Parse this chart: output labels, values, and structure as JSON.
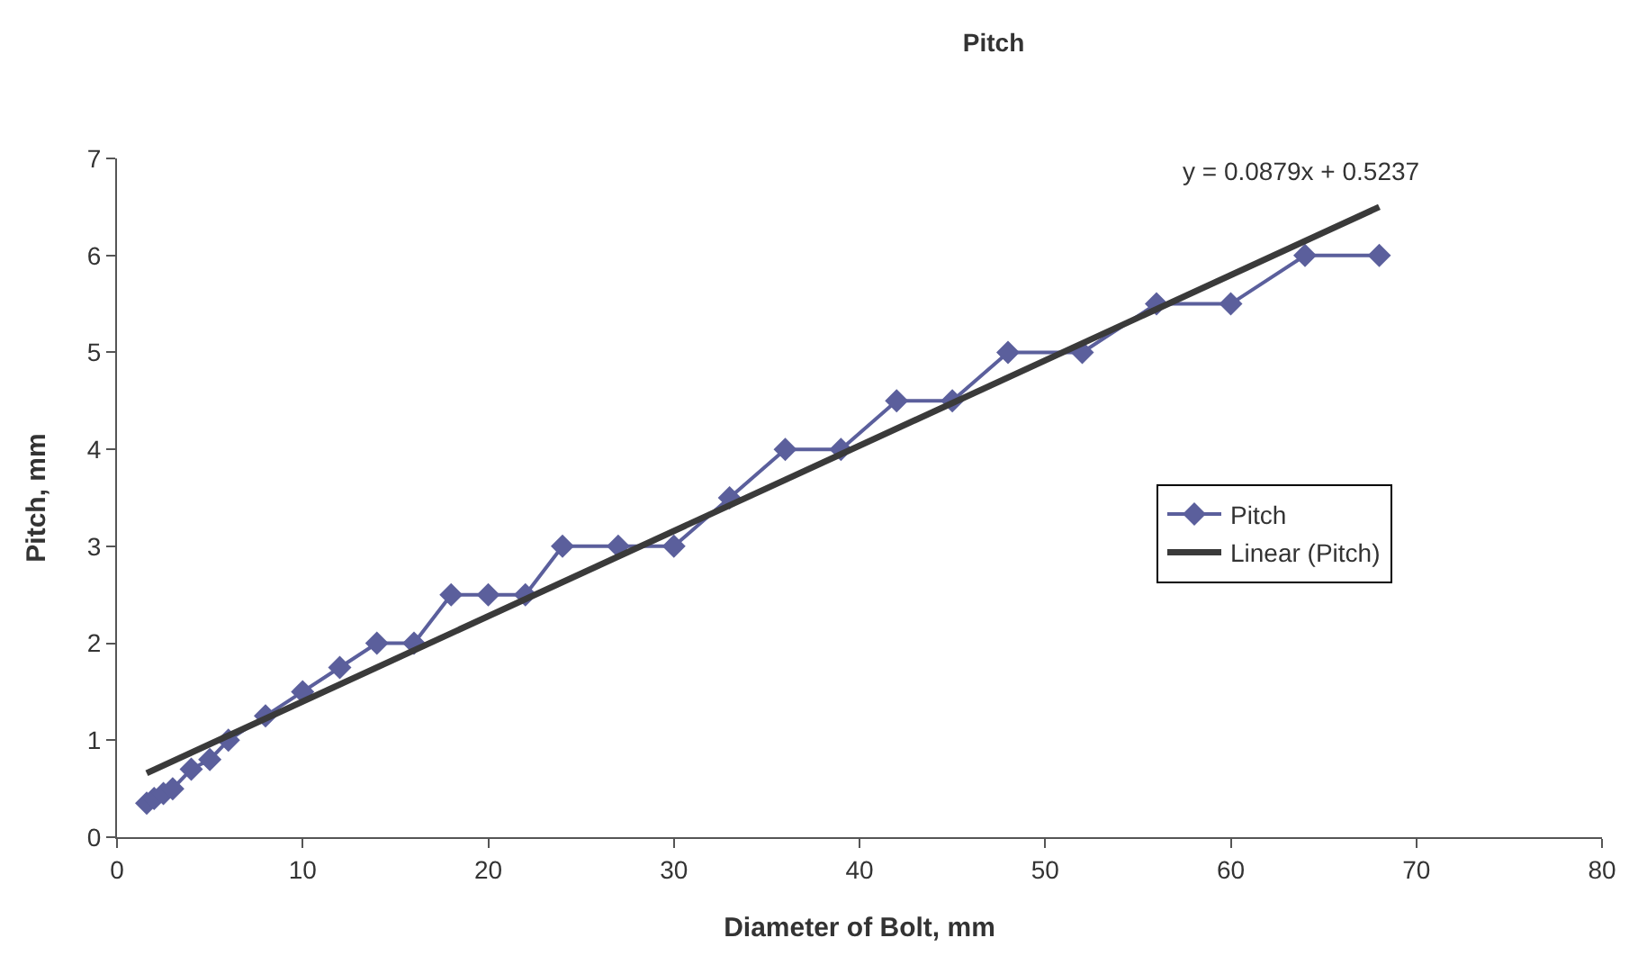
{
  "chart_data": {
    "type": "line",
    "title": "Pitch",
    "xlabel": "Diameter of Bolt, mm",
    "ylabel": "Pitch, mm",
    "x": [
      1.6,
      2,
      2.5,
      3,
      4,
      5,
      6,
      8,
      10,
      12,
      14,
      16,
      18,
      20,
      22,
      24,
      27,
      30,
      33,
      36,
      39,
      42,
      45,
      48,
      52,
      56,
      60,
      64,
      68
    ],
    "series": [
      {
        "name": "Pitch",
        "color": "#5b5f9c",
        "values": [
          0.35,
          0.4,
          0.45,
          0.5,
          0.7,
          0.8,
          1,
          1.25,
          1.5,
          1.75,
          2,
          2,
          2.5,
          2.5,
          2.5,
          3,
          3,
          3,
          3.5,
          4,
          4,
          4.5,
          4.5,
          5,
          5,
          5.5,
          5.5,
          6,
          6
        ]
      },
      {
        "name": "Linear (Pitch)",
        "type": "line",
        "marker": "none",
        "color": "#3a3a3a",
        "x": [
          1.6,
          68
        ],
        "values": [
          0.66,
          6.5
        ]
      }
    ],
    "annotations": [
      "y = 0.0879x + 0.5237"
    ],
    "xlim": [
      0,
      80
    ],
    "xticks": [
      0,
      10,
      20,
      30,
      40,
      50,
      60,
      70,
      80
    ],
    "ylim": [
      0,
      7
    ],
    "yticks": [
      0,
      1,
      2,
      3,
      4,
      5,
      6,
      7
    ],
    "grid": false,
    "legend": "right",
    "marker": "diamond",
    "line_style": "solid"
  }
}
